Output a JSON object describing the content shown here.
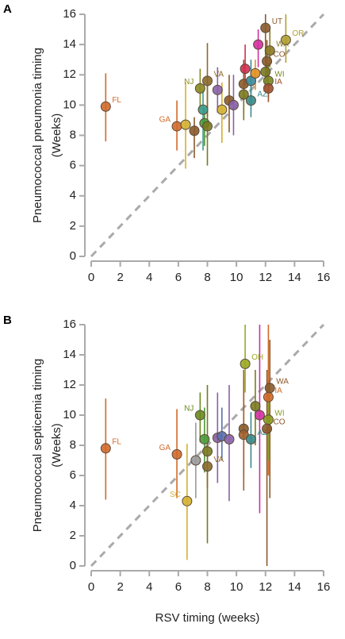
{
  "chart_data": [
    {
      "type": "scatter",
      "panel_label": "A",
      "ylabel": [
        "Pneumococcal pneumonia timing",
        "(Weeks)"
      ],
      "xlim": [
        0,
        16
      ],
      "ylim": [
        0,
        16
      ],
      "xticks": [
        0,
        2,
        4,
        6,
        8,
        10,
        12,
        14,
        16
      ],
      "yticks": [
        0,
        2,
        4,
        6,
        8,
        10,
        12,
        14,
        16
      ],
      "diagonal": true,
      "points": [
        {
          "x": 1.0,
          "y": 9.9,
          "ci": [
            7.6,
            12.1
          ],
          "color": "#d2692a",
          "label": "FL"
        },
        {
          "x": 5.9,
          "y": 8.6,
          "ci": [
            7.0,
            10.3
          ],
          "color": "#d2692a",
          "label": "GA"
        },
        {
          "x": 6.5,
          "y": 8.7,
          "ci": [
            5.8,
            11.5
          ],
          "color": "#d4b030"
        },
        {
          "x": 7.1,
          "y": 8.3,
          "ci": [
            6.5,
            9.2
          ],
          "color": "#8b5a2b"
        },
        {
          "x": 7.5,
          "y": 11.1,
          "ci": [
            9.7,
            12.4
          ],
          "color": "#8a8a20",
          "label": "NJ"
        },
        {
          "x": 7.7,
          "y": 9.7,
          "ci": [
            7.0,
            11.0
          ],
          "color": "#3a9a8a"
        },
        {
          "x": 7.8,
          "y": 8.8,
          "ci": [
            7.3,
            9.8
          ],
          "color": "#4a9a3a"
        },
        {
          "x": 8.0,
          "y": 8.6,
          "ci": [
            6.0,
            11.5
          ],
          "color": "#7a7a20"
        },
        {
          "x": 8.0,
          "y": 11.6,
          "ci": [
            9.2,
            14.1
          ],
          "color": "#8b6a2b",
          "label": "VA"
        },
        {
          "x": 8.7,
          "y": 11.0,
          "ci": [
            9.5,
            12.5
          ],
          "color": "#8a60a8"
        },
        {
          "x": 9.0,
          "y": 9.7,
          "ci": [
            7.5,
            11.5
          ],
          "color": "#d4b030"
        },
        {
          "x": 9.5,
          "y": 10.3,
          "ci": [
            8.2,
            12.0
          ],
          "color": "#8b5a2b"
        },
        {
          "x": 9.8,
          "y": 10.0,
          "ci": [
            8.0,
            12.0
          ],
          "color": "#8a60a8"
        },
        {
          "x": 10.5,
          "y": 11.4,
          "ci": [
            9.5,
            13.0
          ],
          "color": "#8b5a2b"
        },
        {
          "x": 10.6,
          "y": 12.4,
          "ci": [
            11.3,
            14.0
          ],
          "color": "#d03050"
        },
        {
          "x": 10.5,
          "y": 10.7,
          "ci": [
            9.0,
            12.0
          ],
          "color": "#7a7a20"
        },
        {
          "x": 11.0,
          "y": 11.6,
          "ci": [
            10.0,
            13.0
          ],
          "color": "#3a8a9a"
        },
        {
          "x": 11.0,
          "y": 10.3,
          "ci": [
            9.2,
            11.5
          ],
          "color": "#3a8a8a",
          "label": "AZ"
        },
        {
          "x": 11.3,
          "y": 12.1,
          "ci": [
            11.0,
            13.0
          ],
          "color": "#e09020"
        },
        {
          "x": 11.5,
          "y": 14.0,
          "ci": [
            12.5,
            15.0
          ],
          "color": "#d030a0"
        },
        {
          "x": 12.0,
          "y": 15.1,
          "ci": [
            13.5,
            16.0
          ],
          "color": "#8b5a2b",
          "label": "UT"
        },
        {
          "x": 12.0,
          "y": 12.2,
          "ci": [
            11.0,
            13.5
          ],
          "color": "#7a7a20"
        },
        {
          "x": 12.1,
          "y": 12.9,
          "ci": [
            11.5,
            14.3
          ],
          "color": "#8b5a2b",
          "label": "CO"
        },
        {
          "x": 12.3,
          "y": 13.6,
          "ci": [
            12.5,
            15.0
          ],
          "color": "#8a7a20",
          "label": "WA"
        },
        {
          "x": 12.2,
          "y": 11.6,
          "ci": [
            10.5,
            12.8
          ],
          "color": "#7a8a20",
          "label": "WI"
        },
        {
          "x": 12.2,
          "y": 11.1,
          "ci": [
            10.2,
            12.0
          ],
          "color": "#a0502b",
          "label": "IA"
        },
        {
          "x": 13.4,
          "y": 14.3,
          "ci": [
            12.8,
            16.0
          ],
          "color": "#b0a030",
          "label": "OR"
        }
      ]
    },
    {
      "type": "scatter",
      "panel_label": "B",
      "ylabel": [
        "Pneumococcal septicemia timing",
        "(Weeks)"
      ],
      "xlabel": "RSV timing (weeks)",
      "xlim": [
        0,
        16
      ],
      "ylim": [
        0,
        16
      ],
      "xticks": [
        0,
        2,
        4,
        6,
        8,
        10,
        12,
        14,
        16
      ],
      "yticks": [
        0,
        2,
        4,
        6,
        8,
        10,
        12,
        14,
        16
      ],
      "diagonal": true,
      "points": [
        {
          "x": 1.0,
          "y": 7.8,
          "ci": [
            4.4,
            11.1
          ],
          "color": "#d2692a",
          "label": "FL"
        },
        {
          "x": 5.9,
          "y": 7.4,
          "ci": [
            4.5,
            10.4
          ],
          "color": "#d2692a",
          "label": "GA"
        },
        {
          "x": 6.6,
          "y": 4.3,
          "ci": [
            0.4,
            8.1
          ],
          "color": "#d4b030",
          "label": "SC"
        },
        {
          "x": 7.2,
          "y": 7.0,
          "ci": [
            4.5,
            9.5
          ],
          "color": "#9a9a9a"
        },
        {
          "x": 7.5,
          "y": 10.0,
          "ci": [
            8.2,
            11.5
          ],
          "color": "#6a8a20",
          "label": "NJ"
        },
        {
          "x": 7.8,
          "y": 8.4,
          "ci": [
            6.2,
            10.5
          ],
          "color": "#4a9a3a"
        },
        {
          "x": 8.0,
          "y": 7.6,
          "ci": [
            1.5,
            12.0
          ],
          "color": "#7a7a20"
        },
        {
          "x": 8.0,
          "y": 6.6,
          "ci": [
            5.2,
            8.0
          ],
          "color": "#8b6a2b",
          "label": "VA"
        },
        {
          "x": 8.7,
          "y": 8.5,
          "ci": [
            5.5,
            11.5
          ],
          "color": "#8a60a8"
        },
        {
          "x": 9.0,
          "y": 8.6,
          "ci": [
            7.0,
            10.5
          ],
          "color": "#5a70b0"
        },
        {
          "x": 9.5,
          "y": 8.4,
          "ci": [
            4.3,
            12.0
          ],
          "color": "#8a60a8"
        },
        {
          "x": 10.5,
          "y": 9.1,
          "ci": [
            6.0,
            12.5
          ],
          "color": "#8b5a2b"
        },
        {
          "x": 10.5,
          "y": 8.7,
          "ci": [
            5.0,
            13.0
          ],
          "color": "#a0602b"
        },
        {
          "x": 10.6,
          "y": 13.4,
          "ci": [
            11.5,
            16.0
          ],
          "color": "#9aaa20",
          "label": "OH"
        },
        {
          "x": 11.0,
          "y": 8.4,
          "ci": [
            6.5,
            10.2
          ],
          "color": "#3a8a8a",
          "label": "AZ"
        },
        {
          "x": 11.3,
          "y": 10.6,
          "ci": [
            8.0,
            13.0
          ],
          "color": "#7a7a20"
        },
        {
          "x": 11.6,
          "y": 10.0,
          "ci": [
            3.5,
            16.0
          ],
          "color": "#d030a0"
        },
        {
          "x": 12.3,
          "y": 11.8,
          "ci": [
            4.5,
            15.0
          ],
          "color": "#8b5a2b",
          "label": "WA"
        },
        {
          "x": 12.2,
          "y": 11.2,
          "ci": [
            6.0,
            16.0
          ],
          "color": "#d2692a",
          "label": "IA"
        },
        {
          "x": 12.2,
          "y": 9.7,
          "ci": [
            7.0,
            12.0
          ],
          "color": "#8a9a20",
          "label": "WI"
        },
        {
          "x": 12.1,
          "y": 9.1,
          "ci": [
            0.0,
            13.0
          ],
          "color": "#8b5a2b",
          "label": "CO"
        }
      ]
    }
  ]
}
